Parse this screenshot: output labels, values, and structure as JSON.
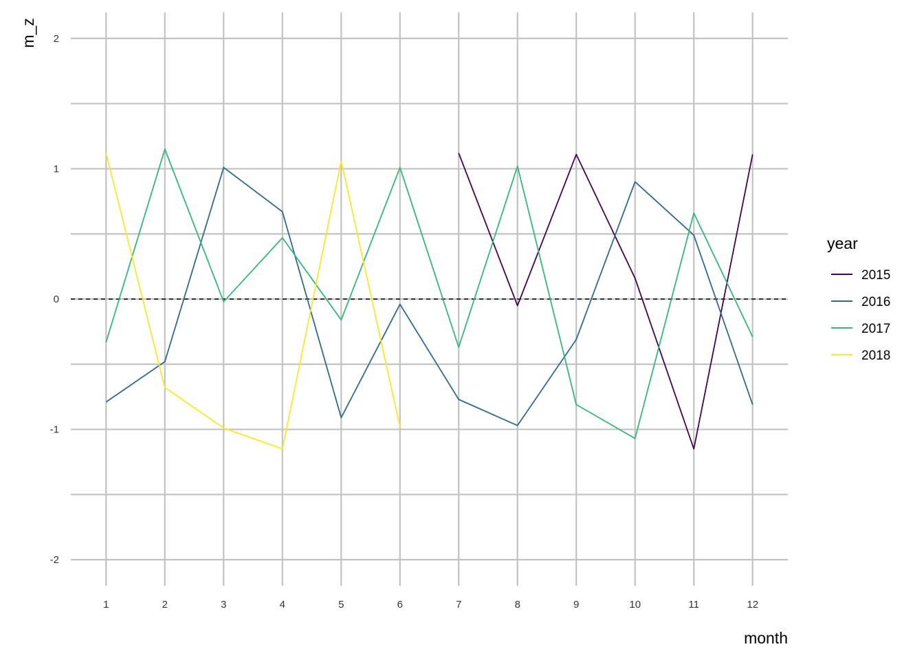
{
  "chart_data": {
    "type": "line",
    "xlabel": "month",
    "ylabel": "m_z",
    "xlim": [
      0.4,
      12.6
    ],
    "ylim": [
      -2.2,
      2.2
    ],
    "x_ticks": [
      1,
      2,
      3,
      4,
      5,
      6,
      7,
      8,
      9,
      10,
      11,
      12
    ],
    "y_ticks": [
      -2,
      -1,
      0,
      1,
      2
    ],
    "y_tick_labels": [
      "-2",
      "-1",
      "0",
      "1",
      "2"
    ],
    "grid": true,
    "reference_line": {
      "y": 0,
      "style": "dashed",
      "color": "#000000"
    },
    "legend": {
      "title": "year",
      "position": "right"
    },
    "series": [
      {
        "name": "2015",
        "color": "#440154",
        "x": [
          7,
          8,
          9,
          10,
          11,
          12
        ],
        "y": [
          1.12,
          -0.05,
          1.11,
          0.16,
          -1.15,
          1.11
        ]
      },
      {
        "name": "2016",
        "color": "#31688E",
        "x": [
          1,
          2,
          3,
          4,
          5,
          6,
          7,
          8,
          9,
          10,
          11,
          12
        ],
        "y": [
          -0.79,
          -0.48,
          1.01,
          0.67,
          -0.91,
          -0.04,
          -0.77,
          -0.97,
          -0.31,
          0.9,
          0.49,
          -0.81
        ]
      },
      {
        "name": "2017",
        "color": "#35B779",
        "x": [
          1,
          2,
          3,
          4,
          5,
          6,
          7,
          8,
          9,
          10,
          11,
          12
        ],
        "y": [
          -0.33,
          1.15,
          -0.02,
          0.47,
          -0.16,
          1.01,
          -0.37,
          1.02,
          -0.81,
          -1.07,
          0.66,
          -0.29
        ]
      },
      {
        "name": "2018",
        "color": "#FDE725",
        "x": [
          1,
          2,
          3,
          4,
          5,
          6
        ],
        "y": [
          1.12,
          -0.68,
          -0.99,
          -1.15,
          1.06,
          -0.98
        ]
      }
    ]
  }
}
